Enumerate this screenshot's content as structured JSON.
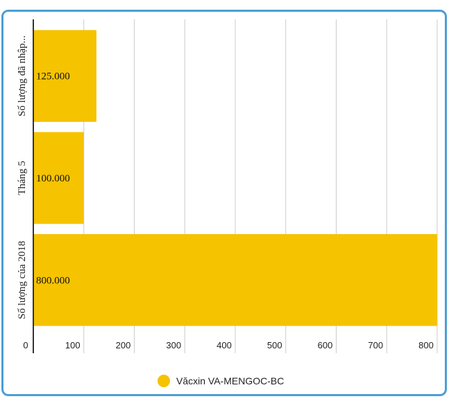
{
  "chart_data": {
    "type": "bar",
    "orientation": "horizontal",
    "categories": [
      "Số lượng đã nhập...",
      "Tháng 5",
      "Số lượng của 2018"
    ],
    "series": [
      {
        "name": "Văcxin VA-MENGOC-BC",
        "values": [
          125,
          100,
          800
        ],
        "data_labels": [
          "125.000",
          "100.000",
          "800.000"
        ]
      }
    ],
    "x_ticks": [
      0,
      100,
      200,
      300,
      400,
      500,
      600,
      700,
      800
    ],
    "xlim": [
      0,
      800
    ],
    "grid": true,
    "legend_position": "bottom",
    "colors": {
      "bar": "#f5c300",
      "grid": "#cccccc",
      "axis": "#333333",
      "frame": "#4a9fd5",
      "legend_marker": "#f5c300"
    }
  }
}
